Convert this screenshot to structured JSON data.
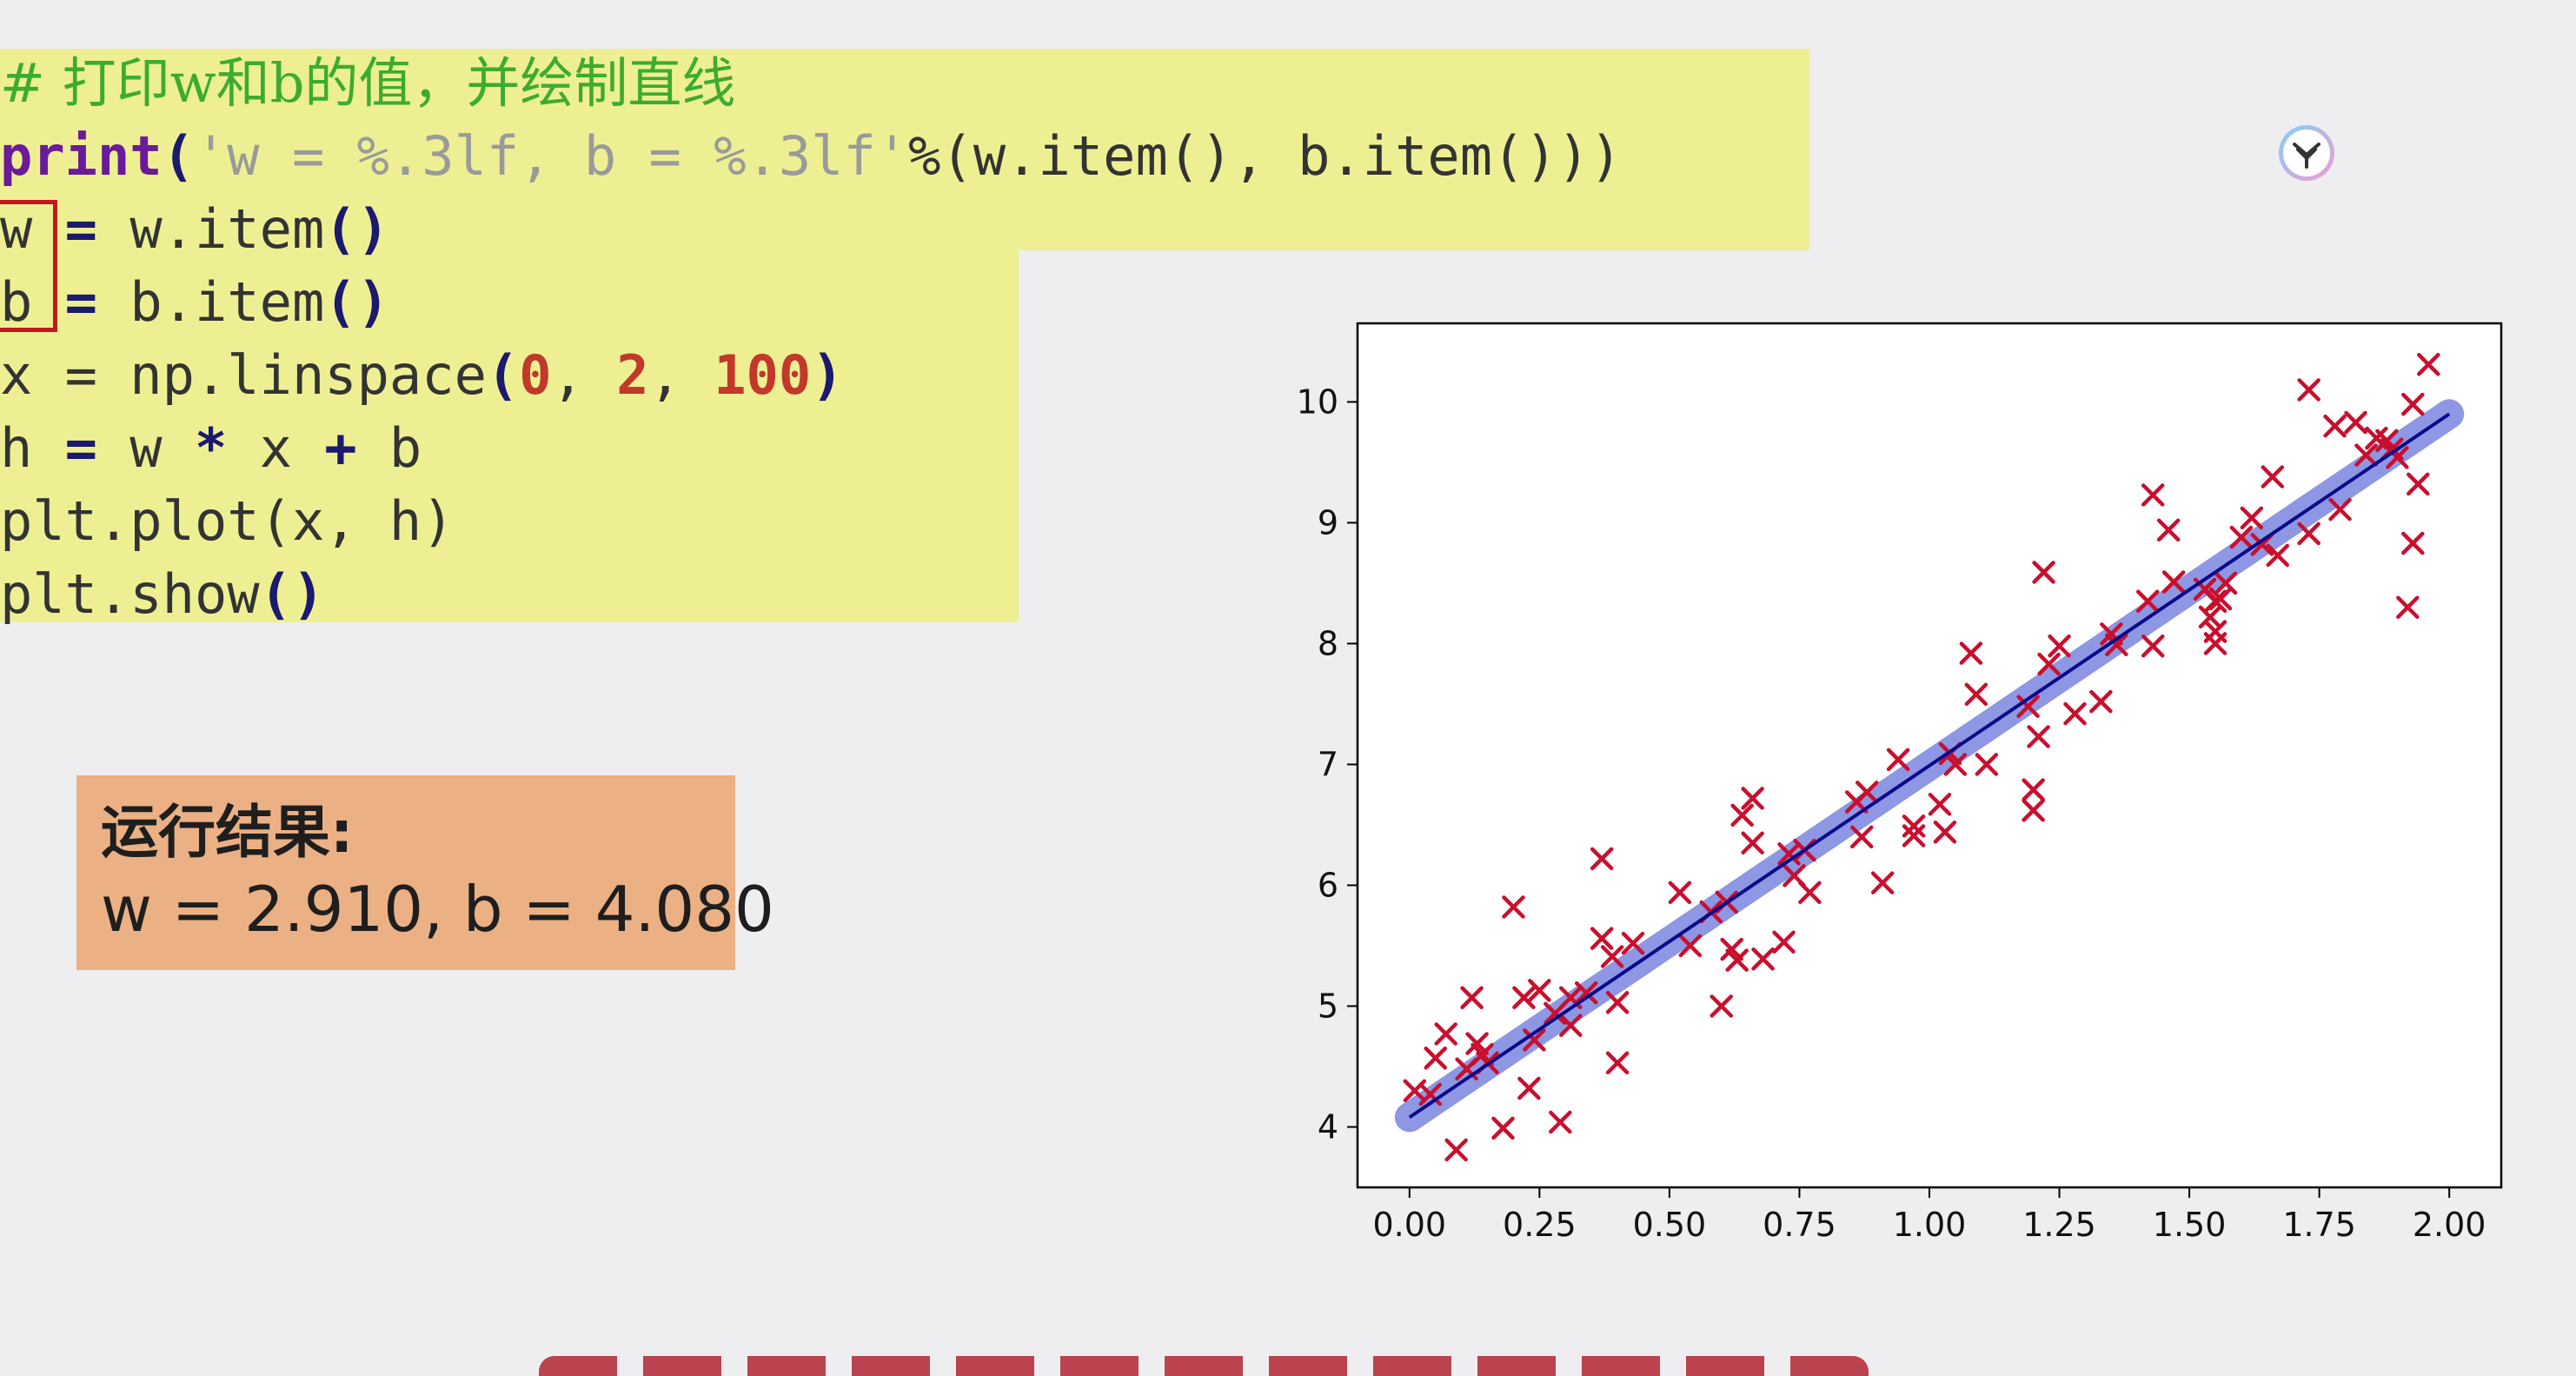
{
  "code": {
    "line1_comment": "# 打印w和b的值，并绘制直线",
    "line2_print": "print",
    "line2_open": "(",
    "line2_str": "'w = %.3lf, b = %.3lf'",
    "line2_rest": "%(w.item(), b.item()))",
    "line3_var": "w",
    "line3_eq": " = ",
    "line3_rest": "w.item",
    "line3_paren": "()",
    "line4_var": "b",
    "line4_eq": " = ",
    "line4_rest": "b.item",
    "line4_paren": "()",
    "line5_start": "x = np.linspace",
    "line5_open": "(",
    "line5_n0": "0",
    "line5_sep1": ", ",
    "line5_n1": "2",
    "line5_sep2": ", ",
    "line5_n2": "100",
    "line5_close": ")",
    "line6_h": "h ",
    "line6_eq": "=",
    "line6_w": " w ",
    "line6_mul": "*",
    "line6_x": " x ",
    "line6_plus": "+",
    "line6_b": " b",
    "line7": "plt.plot",
    "line7_args": "(x, h)",
    "line8": "plt.show",
    "line8_args": "()"
  },
  "result": {
    "title": "运行结果:",
    "value": "w = 2.910, b = 4.080"
  },
  "icons": {
    "logo": "lotus-logo-icon"
  },
  "colors": {
    "highlight": "#eeef93",
    "result_bg": "#ebb084",
    "marker": "#c8102e",
    "line": "#0a0a8a",
    "line_halo": "#7b86e0"
  },
  "chart_data": {
    "type": "scatter",
    "title": "",
    "xlabel": "",
    "ylabel": "",
    "xlim": [
      -0.1,
      2.1
    ],
    "ylim": [
      3.5,
      10.65
    ],
    "xticks": [
      0.0,
      0.25,
      0.5,
      0.75,
      1.0,
      1.25,
      1.5,
      1.75,
      2.0
    ],
    "xtick_labels": [
      "0.00",
      "0.25",
      "0.50",
      "0.75",
      "1.00",
      "1.25",
      "1.50",
      "1.75",
      "2.00"
    ],
    "yticks": [
      4,
      5,
      6,
      7,
      8,
      9,
      10
    ],
    "ytick_labels": [
      "4",
      "5",
      "6",
      "7",
      "8",
      "9",
      "10"
    ],
    "grid": false,
    "fit_line": {
      "w": 2.91,
      "b": 4.08,
      "x_range": [
        0,
        2
      ]
    },
    "series": [
      {
        "marker": "x",
        "points": [
          [
            0.01,
            4.3
          ],
          [
            0.04,
            4.27
          ],
          [
            0.05,
            4.57
          ],
          [
            0.07,
            4.77
          ],
          [
            0.09,
            3.81
          ],
          [
            0.11,
            4.48
          ],
          [
            0.12,
            5.07
          ],
          [
            0.13,
            4.69
          ],
          [
            0.14,
            4.6
          ],
          [
            0.15,
            4.53
          ],
          [
            0.18,
            3.99
          ],
          [
            0.2,
            5.82
          ],
          [
            0.22,
            5.07
          ],
          [
            0.23,
            4.32
          ],
          [
            0.24,
            4.72
          ],
          [
            0.25,
            5.13
          ],
          [
            0.28,
            4.94
          ],
          [
            0.29,
            4.04
          ],
          [
            0.31,
            4.84
          ],
          [
            0.31,
            5.07
          ],
          [
            0.34,
            5.11
          ],
          [
            0.37,
            6.22
          ],
          [
            0.37,
            5.56
          ],
          [
            0.39,
            5.41
          ],
          [
            0.4,
            5.03
          ],
          [
            0.4,
            4.53
          ],
          [
            0.43,
            5.52
          ],
          [
            0.52,
            5.94
          ],
          [
            0.54,
            5.5
          ],
          [
            0.58,
            5.78
          ],
          [
            0.6,
            5.0
          ],
          [
            0.61,
            5.86
          ],
          [
            0.62,
            5.47
          ],
          [
            0.63,
            5.38
          ],
          [
            0.64,
            6.58
          ],
          [
            0.66,
            6.35
          ],
          [
            0.66,
            6.72
          ],
          [
            0.68,
            5.39
          ],
          [
            0.72,
            5.53
          ],
          [
            0.73,
            6.26
          ],
          [
            0.74,
            6.08
          ],
          [
            0.76,
            6.29
          ],
          [
            0.77,
            5.94
          ],
          [
            0.86,
            6.69
          ],
          [
            0.87,
            6.4
          ],
          [
            0.88,
            6.77
          ],
          [
            0.91,
            6.02
          ],
          [
            0.94,
            7.04
          ],
          [
            0.97,
            6.49
          ],
          [
            0.97,
            6.41
          ],
          [
            1.02,
            6.67
          ],
          [
            1.03,
            6.44
          ],
          [
            1.04,
            7.09
          ],
          [
            1.05,
            7.0
          ],
          [
            1.08,
            7.92
          ],
          [
            1.09,
            7.58
          ],
          [
            1.11,
            7.0
          ],
          [
            1.19,
            7.48
          ],
          [
            1.2,
            6.79
          ],
          [
            1.2,
            6.62
          ],
          [
            1.21,
            7.23
          ],
          [
            1.22,
            8.59
          ],
          [
            1.23,
            7.83
          ],
          [
            1.25,
            7.98
          ],
          [
            1.28,
            7.42
          ],
          [
            1.33,
            7.52
          ],
          [
            1.36,
            7.99
          ],
          [
            1.42,
            8.35
          ],
          [
            1.43,
            9.23
          ],
          [
            1.43,
            7.98
          ],
          [
            1.46,
            8.94
          ],
          [
            1.47,
            8.51
          ],
          [
            1.53,
            8.45
          ],
          [
            1.54,
            8.22
          ],
          [
            1.55,
            8.35
          ],
          [
            1.55,
            8.1
          ],
          [
            1.55,
            8.0
          ],
          [
            1.56,
            8.37
          ],
          [
            1.57,
            8.5
          ],
          [
            1.6,
            8.88
          ],
          [
            1.62,
            9.04
          ],
          [
            1.64,
            8.82
          ],
          [
            1.66,
            9.38
          ],
          [
            1.67,
            8.73
          ],
          [
            1.73,
            10.1
          ],
          [
            1.73,
            8.91
          ],
          [
            1.78,
            9.8
          ],
          [
            1.79,
            9.11
          ],
          [
            1.82,
            9.83
          ],
          [
            1.84,
            9.56
          ],
          [
            1.88,
            9.68
          ],
          [
            1.89,
            9.61
          ],
          [
            1.9,
            9.54
          ],
          [
            1.92,
            8.3
          ],
          [
            1.93,
            9.98
          ],
          [
            1.94,
            9.32
          ],
          [
            1.96,
            10.31
          ],
          [
            1.93,
            8.83
          ],
          [
            1.86,
            9.7
          ],
          [
            1.35,
            8.08
          ]
        ]
      }
    ]
  }
}
